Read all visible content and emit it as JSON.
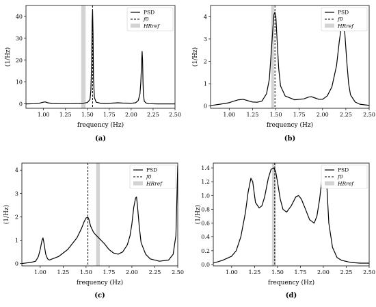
{
  "chart_data": [
    {
      "type": "line",
      "panel_label": "(a)",
      "xlabel": "frequency (Hz)",
      "ylabel": "(1/Hz)",
      "xlim": [
        0.8,
        2.5
      ],
      "ylim": [
        -2,
        45
      ],
      "xticks": [
        1.0,
        1.25,
        1.5,
        1.75,
        2.0,
        2.25,
        2.5
      ],
      "xtick_labels": [
        "1.00",
        "1.25",
        "1.50",
        "1.75",
        "2.00",
        "2.25",
        "2.50"
      ],
      "yticks": [
        0,
        10,
        20,
        30,
        40
      ],
      "ytick_labels": [
        "0",
        "10",
        "20",
        "30",
        "40"
      ],
      "legend": {
        "position": "top-right",
        "entries": [
          "PSD",
          "f0",
          "HRref"
        ]
      },
      "f0": 1.56,
      "hr_ref_band": [
        1.43,
        1.48
      ],
      "series": [
        {
          "name": "PSD",
          "x": [
            0.8,
            0.9,
            0.95,
            1.0,
            1.02,
            1.05,
            1.1,
            1.2,
            1.3,
            1.4,
            1.45,
            1.5,
            1.53,
            1.54,
            1.55,
            1.555,
            1.56,
            1.565,
            1.57,
            1.58,
            1.6,
            1.65,
            1.7,
            1.8,
            1.85,
            1.9,
            2.0,
            2.05,
            2.08,
            2.1,
            2.11,
            2.12,
            2.125,
            2.13,
            2.135,
            2.14,
            2.15,
            2.17,
            2.2,
            2.3,
            2.4,
            2.5
          ],
          "values": [
            0.0,
            0.1,
            0.3,
            0.8,
            0.9,
            0.5,
            0.2,
            0.1,
            0.1,
            0.2,
            0.3,
            0.6,
            2.0,
            6.0,
            20.0,
            38.0,
            43.0,
            32.0,
            12.0,
            3.0,
            0.8,
            0.3,
            0.2,
            0.4,
            0.5,
            0.4,
            0.3,
            0.5,
            1.5,
            4.5,
            10.0,
            20.0,
            24.0,
            20.0,
            10.0,
            4.0,
            1.2,
            0.4,
            0.1,
            0.0,
            0.0,
            0.0
          ]
        }
      ]
    },
    {
      "type": "line",
      "panel_label": "(b)",
      "xlabel": "frequency (Hz)",
      "ylabel": "(1/Hz)",
      "xlim": [
        0.8,
        2.5
      ],
      "ylim": [
        -0.1,
        4.5
      ],
      "xticks": [
        1.0,
        1.25,
        1.5,
        1.75,
        2.0,
        2.25,
        2.5
      ],
      "xtick_labels": [
        "1.00",
        "1.25",
        "1.50",
        "1.75",
        "2.00",
        "2.25",
        "2.50"
      ],
      "yticks": [
        0,
        1,
        2,
        3,
        4
      ],
      "ytick_labels": [
        "0",
        "1",
        "2",
        "3",
        "4"
      ],
      "legend": {
        "position": "top-right",
        "entries": [
          "PSD",
          "f0",
          "HRref"
        ]
      },
      "f0": 1.49,
      "hr_ref_band": [
        1.45,
        1.48
      ],
      "series": [
        {
          "name": "PSD",
          "x": [
            0.8,
            0.9,
            1.0,
            1.05,
            1.1,
            1.15,
            1.2,
            1.25,
            1.3,
            1.35,
            1.4,
            1.43,
            1.45,
            1.47,
            1.48,
            1.49,
            1.5,
            1.51,
            1.53,
            1.55,
            1.6,
            1.7,
            1.8,
            1.85,
            1.88,
            1.92,
            1.96,
            2.0,
            2.05,
            2.1,
            2.15,
            2.18,
            2.2,
            2.22,
            2.24,
            2.26,
            2.28,
            2.3,
            2.35,
            2.4,
            2.5
          ],
          "values": [
            0.02,
            0.08,
            0.15,
            0.22,
            0.28,
            0.3,
            0.24,
            0.18,
            0.17,
            0.22,
            0.55,
            1.2,
            2.4,
            3.6,
            4.1,
            4.2,
            4.0,
            3.2,
            1.7,
            0.9,
            0.45,
            0.28,
            0.32,
            0.4,
            0.42,
            0.36,
            0.3,
            0.3,
            0.45,
            0.85,
            1.8,
            2.9,
            3.5,
            3.7,
            3.2,
            2.0,
            1.0,
            0.5,
            0.18,
            0.08,
            0.03
          ]
        }
      ]
    },
    {
      "type": "line",
      "panel_label": "(c)",
      "xlabel": "frequency (Hz)",
      "ylabel": "(1/Hz)",
      "xlim": [
        0.8,
        2.5
      ],
      "ylim": [
        -0.1,
        4.3
      ],
      "xticks": [
        1.0,
        1.25,
        1.5,
        1.75,
        2.0,
        2.25,
        2.5
      ],
      "xtick_labels": [
        "1.00",
        "1.25",
        "1.50",
        "1.75",
        "2.00",
        "2.25",
        "2.50"
      ],
      "yticks": [
        0,
        1,
        2,
        3,
        4
      ],
      "ytick_labels": [
        "0",
        "1",
        "2",
        "3",
        "4"
      ],
      "legend": {
        "position": "top-right",
        "entries": [
          "PSD",
          "f0",
          "HRref"
        ]
      },
      "f0": 1.52,
      "hr_ref_band": [
        1.61,
        1.65
      ],
      "series": [
        {
          "name": "PSD",
          "x": [
            0.8,
            0.9,
            0.95,
            0.98,
            1.0,
            1.02,
            1.03,
            1.04,
            1.06,
            1.08,
            1.1,
            1.2,
            1.3,
            1.4,
            1.45,
            1.48,
            1.5,
            1.52,
            1.53,
            1.55,
            1.58,
            1.6,
            1.65,
            1.7,
            1.75,
            1.8,
            1.85,
            1.9,
            1.95,
            1.98,
            2.0,
            2.02,
            2.04,
            2.05,
            2.06,
            2.08,
            2.1,
            2.15,
            2.2,
            2.3,
            2.4,
            2.45,
            2.48,
            2.5
          ],
          "values": [
            0.0,
            0.05,
            0.1,
            0.3,
            0.6,
            1.0,
            1.1,
            0.9,
            0.4,
            0.2,
            0.15,
            0.3,
            0.6,
            1.1,
            1.5,
            1.8,
            1.95,
            1.98,
            1.9,
            1.6,
            1.35,
            1.25,
            1.05,
            0.85,
            0.6,
            0.45,
            0.4,
            0.5,
            0.8,
            1.2,
            1.7,
            2.4,
            2.8,
            2.85,
            2.5,
            1.6,
            0.9,
            0.4,
            0.2,
            0.1,
            0.15,
            0.4,
            1.2,
            4.2
          ]
        }
      ]
    },
    {
      "type": "line",
      "panel_label": "(d)",
      "xlabel": "frequency (Hz)",
      "ylabel": "(1/Hz)",
      "xlim": [
        0.8,
        2.5
      ],
      "ylim": [
        -0.02,
        1.47
      ],
      "xticks": [
        1.0,
        1.25,
        1.5,
        1.75,
        2.0,
        2.25,
        2.5
      ],
      "xtick_labels": [
        "1.00",
        "1.25",
        "1.50",
        "1.75",
        "2.00",
        "2.25",
        "2.50"
      ],
      "yticks": [
        0.0,
        0.2,
        0.4,
        0.6,
        0.8,
        1.0,
        1.2,
        1.4
      ],
      "ytick_labels": [
        "0.0",
        "0.2",
        "0.4",
        "0.6",
        "0.8",
        "1.0",
        "1.2",
        "1.4"
      ],
      "legend": {
        "position": "top-right",
        "entries": [
          "PSD",
          "f0",
          "HRref"
        ]
      },
      "f0": 1.47,
      "hr_ref_band": [
        1.44,
        1.48
      ],
      "series": [
        {
          "name": "PSD",
          "x": [
            0.8,
            0.9,
            1.0,
            1.05,
            1.1,
            1.15,
            1.18,
            1.21,
            1.23,
            1.26,
            1.3,
            1.33,
            1.36,
            1.4,
            1.43,
            1.46,
            1.48,
            1.5,
            1.53,
            1.56,
            1.6,
            1.65,
            1.7,
            1.73,
            1.76,
            1.8,
            1.85,
            1.9,
            1.93,
            1.96,
            1.99,
            2.01,
            2.02,
            2.04,
            2.06,
            2.1,
            2.15,
            2.2,
            2.3,
            2.4,
            2.5
          ],
          "values": [
            0.02,
            0.06,
            0.12,
            0.2,
            0.4,
            0.75,
            1.05,
            1.25,
            1.2,
            0.9,
            0.82,
            0.85,
            0.98,
            1.25,
            1.38,
            1.4,
            1.35,
            1.2,
            0.95,
            0.8,
            0.76,
            0.85,
            0.98,
            1.0,
            0.95,
            0.82,
            0.65,
            0.6,
            0.7,
            0.95,
            1.3,
            1.43,
            1.42,
            1.1,
            0.6,
            0.25,
            0.1,
            0.06,
            0.03,
            0.02,
            0.02
          ]
        }
      ]
    }
  ]
}
